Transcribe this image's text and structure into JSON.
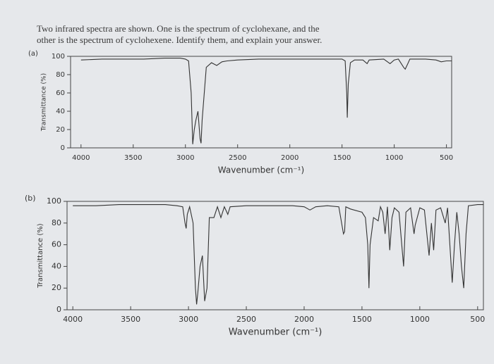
{
  "question": [
    "Two infrared spectra are shown. One is the spectrum of cyclohexane, and the",
    "other is the spectrum of cyclohexene. Identify them, and explain your answer."
  ],
  "chart_data": [
    {
      "type": "line",
      "label": "(a)",
      "xlabel": "Wavenumber (cm⁻¹)",
      "ylabel": "Transmittance (%)",
      "color": "#333333",
      "x": [
        4000,
        3800,
        3600,
        3400,
        3200,
        3050,
        3000,
        2970,
        2945,
        2930,
        2915,
        2900,
        2880,
        2860,
        2850,
        2840,
        2800,
        2750,
        2700,
        2650,
        2600,
        2500,
        2300,
        2100,
        2000,
        1800,
        1600,
        1500,
        1470,
        1455,
        1450,
        1440,
        1420,
        1380,
        1300,
        1260,
        1240,
        1100,
        1040,
        1000,
        960,
        910,
        895,
        870,
        850,
        700,
        600,
        550,
        500,
        450
      ],
      "values": [
        96,
        97,
        97,
        97,
        98,
        98,
        97,
        95,
        60,
        4,
        20,
        30,
        40,
        10,
        5,
        30,
        88,
        93,
        90,
        94,
        95,
        96,
        97,
        97,
        97,
        97,
        97,
        97,
        95,
        60,
        33,
        70,
        93,
        96,
        96,
        92,
        96,
        97,
        92,
        96,
        97,
        88,
        86,
        92,
        97,
        97,
        96,
        94,
        95,
        95
      ],
      "xlim": [
        4100,
        450
      ],
      "xticks": [
        4000,
        3500,
        3000,
        2500,
        2000,
        1500,
        1000,
        500
      ],
      "ylim": [
        0,
        100
      ],
      "yticks": [
        0,
        20,
        40,
        60,
        80,
        100
      ]
    },
    {
      "type": "line",
      "label": "(b)",
      "xlabel": "Wavenumber (cm⁻¹)",
      "ylabel": "Transmittance (%)",
      "color": "#333333",
      "x": [
        4000,
        3800,
        3600,
        3400,
        3200,
        3100,
        3050,
        3030,
        3020,
        3010,
        2990,
        2960,
        2940,
        2930,
        2920,
        2900,
        2880,
        2860,
        2840,
        2820,
        2780,
        2750,
        2720,
        2690,
        2660,
        2640,
        2500,
        2300,
        2100,
        2000,
        1950,
        1900,
        1800,
        1700,
        1660,
        1650,
        1640,
        1600,
        1500,
        1470,
        1450,
        1440,
        1430,
        1400,
        1360,
        1340,
        1320,
        1300,
        1280,
        1260,
        1240,
        1220,
        1180,
        1140,
        1120,
        1080,
        1050,
        1040,
        1000,
        960,
        920,
        900,
        880,
        860,
        820,
        780,
        760,
        720,
        700,
        680,
        660,
        640,
        620,
        600,
        580,
        500,
        450
      ],
      "values": [
        96,
        96,
        97,
        97,
        97,
        96,
        95,
        80,
        75,
        88,
        95,
        80,
        20,
        5,
        15,
        40,
        50,
        8,
        20,
        85,
        85,
        95,
        85,
        95,
        88,
        95,
        96,
        96,
        96,
        95,
        92,
        95,
        96,
        95,
        70,
        72,
        95,
        93,
        90,
        85,
        60,
        20,
        60,
        85,
        82,
        95,
        90,
        70,
        95,
        55,
        85,
        94,
        90,
        40,
        90,
        94,
        70,
        78,
        94,
        92,
        50,
        80,
        55,
        92,
        94,
        80,
        94,
        25,
        60,
        90,
        70,
        40,
        20,
        70,
        96,
        97,
        97
      ],
      "xlim": [
        4050,
        450
      ],
      "xticks": [
        4000,
        3500,
        3000,
        2500,
        2000,
        1500,
        1000,
        500
      ],
      "ylim": [
        0,
        100
      ],
      "yticks": [
        0,
        20,
        40,
        60,
        80,
        100
      ]
    }
  ]
}
